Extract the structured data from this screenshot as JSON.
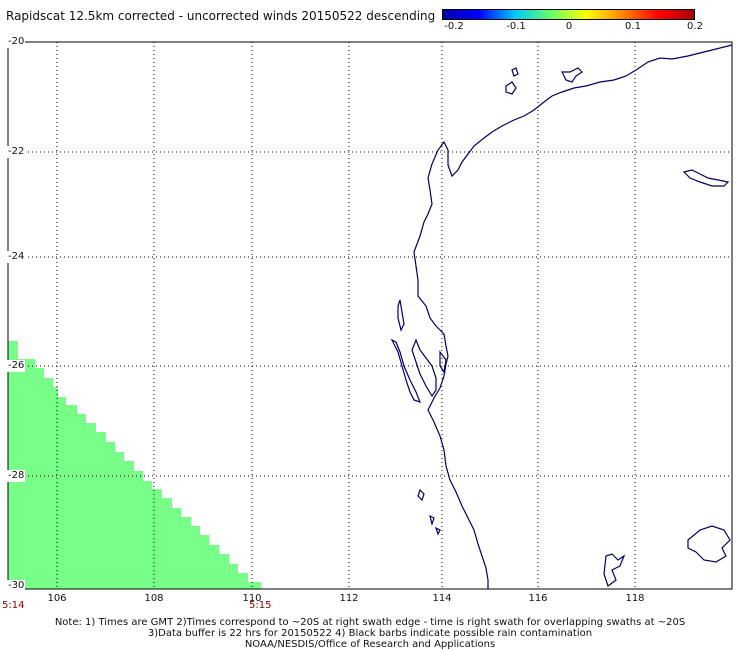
{
  "title": "Rapidscat 12.5km corrected - uncorrected winds 20150522 descending",
  "colorbar": {
    "ticks": [
      "-0.2",
      "-0.1",
      "0",
      "0.1",
      "0.2"
    ],
    "colors": [
      "#0000aa",
      "#0000ff",
      "#00c8ff",
      "#66ff66",
      "#ffff00",
      "#ff8800",
      "#ff0000",
      "#aa0000"
    ]
  },
  "map": {
    "lat_labels": [
      "-20",
      "-22",
      "-24",
      "-26",
      "-28",
      "-30"
    ],
    "lon_labels": [
      "106",
      "108",
      "110",
      "112",
      "114",
      "116",
      "118"
    ],
    "coast_color": "#000066",
    "swath_color": "#77ff88"
  },
  "times": {
    "left": "5:14",
    "right": "5:15"
  },
  "notes": {
    "line1": "Note: 1) Times are GMT 2)Times correspond to ~20S at right swath edge - time is right swath for overlapping swaths at ~20S",
    "line2": "3)Data buffer is 22 hrs for 20150522 4) Black barbs indicate possible rain contamination",
    "line3": "NOAA/NESDIS/Office of Research and Applications"
  }
}
